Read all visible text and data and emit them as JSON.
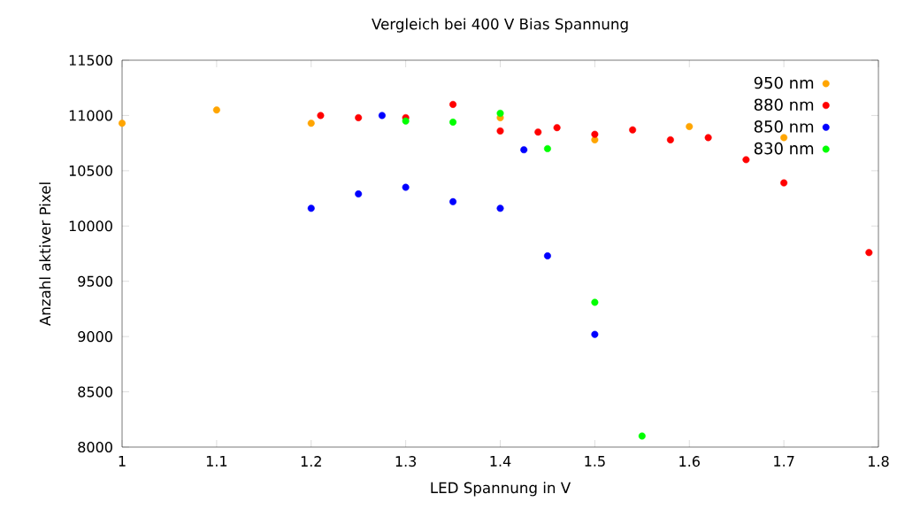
{
  "chart_data": {
    "type": "scatter",
    "title": "Vergleich bei 400 V Bias Spannung",
    "xlabel": "LED Spannung in V",
    "ylabel": "Anzahl aktiver Pixel",
    "xlim": [
      1,
      1.8
    ],
    "ylim": [
      8000,
      11500
    ],
    "xticks": [
      1,
      1.1,
      1.2,
      1.3,
      1.4,
      1.5,
      1.6,
      1.7,
      1.8
    ],
    "yticks": [
      8000,
      8500,
      9000,
      9500,
      10000,
      10500,
      11000,
      11500
    ],
    "grid": false,
    "legend": "top right",
    "marker": "circle",
    "series": [
      {
        "name": "950 nm",
        "color": "#ffa500",
        "x": [
          1.0,
          1.1,
          1.2,
          1.4,
          1.5,
          1.6,
          1.7
        ],
        "values": [
          10930,
          11050,
          10930,
          10980,
          10780,
          10900,
          10800
        ]
      },
      {
        "name": "880 nm",
        "color": "#ff0000",
        "x": [
          1.21,
          1.25,
          1.3,
          1.35,
          1.4,
          1.44,
          1.46,
          1.5,
          1.54,
          1.58,
          1.62,
          1.66,
          1.7,
          1.79
        ],
        "values": [
          11000,
          10980,
          10980,
          11100,
          10860,
          10850,
          10890,
          10830,
          10870,
          10780,
          10800,
          10600,
          10390,
          9760
        ]
      },
      {
        "name": "850 nm",
        "color": "#0000ff",
        "x": [
          1.2,
          1.25,
          1.275,
          1.3,
          1.35,
          1.4,
          1.425,
          1.45,
          1.5
        ],
        "values": [
          10160,
          10290,
          11000,
          10350,
          10220,
          10160,
          10690,
          9730,
          9020
        ]
      },
      {
        "name": "830 nm",
        "color": "#00ff00",
        "x": [
          1.3,
          1.35,
          1.4,
          1.45,
          1.5,
          1.55
        ],
        "values": [
          10950,
          10940,
          11020,
          10700,
          9310,
          8100
        ]
      }
    ]
  }
}
